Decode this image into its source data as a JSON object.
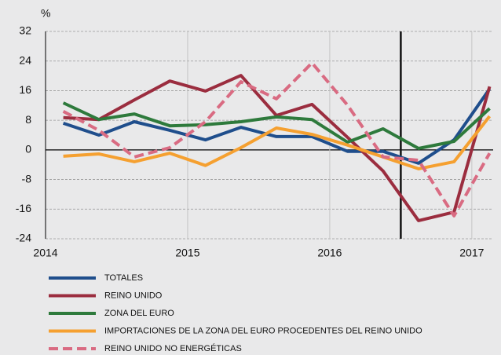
{
  "chart_data": {
    "type": "line",
    "y_unit": "%",
    "x": [
      2014.125,
      2014.375,
      2014.625,
      2014.875,
      2015.125,
      2015.375,
      2015.625,
      2015.875,
      2016.125,
      2016.375,
      2016.625,
      2016.875,
      2017.125
    ],
    "series": [
      {
        "name": "TOTALES",
        "color": "#1f4e8c",
        "dashed": false,
        "values": [
          7.2,
          4,
          7.6,
          5.3,
          2.7,
          6.1,
          3.6,
          3.6,
          -0.4,
          -0.4,
          -3.6,
          2.7,
          16.5
        ]
      },
      {
        "name": "REINO UNIDO",
        "color": "#9b2d3f",
        "dashed": false,
        "values": [
          8.7,
          8.2,
          13.5,
          18.6,
          15.9,
          20.1,
          9.3,
          12.3,
          3.4,
          -5.7,
          -19.1,
          -16.8,
          17.1
        ]
      },
      {
        "name": "ZONA DEL EURO",
        "color": "#2e7a3c",
        "dashed": false,
        "values": [
          12.7,
          8.2,
          9.7,
          6.5,
          6.8,
          7.6,
          8.9,
          8.2,
          2.1,
          5.7,
          0.4,
          2.3,
          11.2
        ]
      },
      {
        "name": "IMPORTACIONES DE LA ZONA DEL EURO PROCEDENTES DEL REINO UNIDO",
        "color": "#f5a030",
        "dashed": false,
        "values": [
          -1.7,
          -1.1,
          -3.2,
          -0.9,
          -4.2,
          0.6,
          5.9,
          4.2,
          1.3,
          -1.9,
          -5.1,
          -3.2,
          9.1
        ]
      },
      {
        "name": "REINO UNIDO NO ENERGÉTICAS",
        "color": "#d96b82",
        "dashed": true,
        "values": [
          10.4,
          5.3,
          -1.9,
          0.6,
          7.6,
          18.4,
          13.8,
          23.5,
          12.1,
          -1.9,
          -2.8,
          -17.8,
          -0.9
        ]
      }
    ],
    "vline_x": 2016.5,
    "xlim": [
      2014,
      2017.15
    ],
    "xticks": [
      2014,
      2015,
      2016,
      2017
    ],
    "ylim": [
      -24,
      32
    ],
    "yticks": [
      -24,
      -16,
      -8,
      0,
      8,
      16,
      24,
      32
    ],
    "grid": true
  }
}
